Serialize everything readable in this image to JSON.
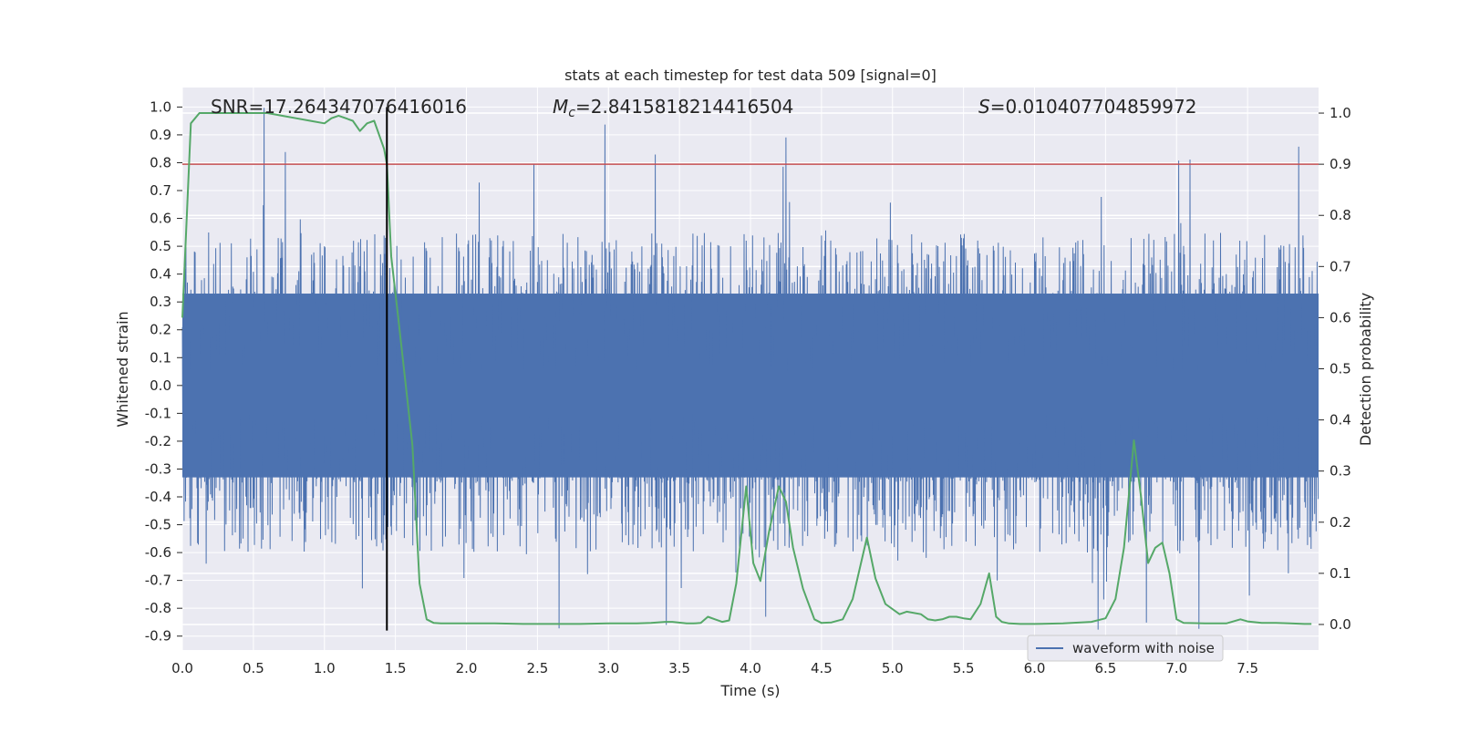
{
  "chart_data": {
    "type": "line",
    "title": "stats at each timestep for test data 509 [signal=0]",
    "xlabel": "Time (s)",
    "ylabel": "Whitened strain",
    "y2label": "Detection probability",
    "xlim": [
      0.0,
      8.0
    ],
    "ylim": [
      -0.95,
      1.07
    ],
    "y2lim": [
      -0.05,
      1.05
    ],
    "x_ticks": [
      "0.0",
      "0.5",
      "1.0",
      "1.5",
      "2.0",
      "2.5",
      "3.0",
      "3.5",
      "4.0",
      "4.5",
      "5.0",
      "5.5",
      "6.0",
      "6.5",
      "7.0",
      "7.5"
    ],
    "y_ticks": [
      "1.0",
      "0.9",
      "0.8",
      "0.7",
      "0.6",
      "0.5",
      "0.4",
      "0.3",
      "0.2",
      "0.1",
      "0.0",
      "-0.1",
      "-0.2",
      "-0.3",
      "-0.4",
      "-0.5",
      "-0.6",
      "-0.7",
      "-0.8",
      "-0.9"
    ],
    "y2_ticks": [
      "1.0",
      "0.9",
      "0.8",
      "0.7",
      "0.6",
      "0.5",
      "0.4",
      "0.3",
      "0.2",
      "0.1",
      "0.0"
    ],
    "annotations": {
      "snr": "SNR=17.264347076416016",
      "mc_symbol": "M",
      "mc_sub": "c",
      "mc_value": "=2.8415818214416504",
      "s_symbol": "S",
      "s_value": "=0.010407704859972"
    },
    "legend": {
      "label": "waveform with noise",
      "placement": "lower-right"
    },
    "threshold_line": {
      "value": 0.9,
      "axis": "right",
      "color": "#c44e52"
    },
    "event_marker": {
      "x": 1.44,
      "y_from": -0.88,
      "y_to": 1.0,
      "color": "#000000"
    },
    "strain_series": {
      "name": "waveform with noise",
      "color": "#4c72b0",
      "n_samples": 1600,
      "core_band": [
        -0.33,
        0.33
      ],
      "typical_peak": [
        0.28,
        0.55
      ],
      "max_peak": 1.0,
      "min_trough": -0.88
    },
    "detection_probability": {
      "color": "#55a868",
      "x": [
        0.0,
        0.06,
        0.12,
        0.2,
        0.3,
        0.4,
        0.5,
        0.6,
        0.7,
        0.8,
        0.9,
        1.0,
        1.05,
        1.1,
        1.2,
        1.25,
        1.3,
        1.35,
        1.42,
        1.44,
        1.47,
        1.52,
        1.58,
        1.62,
        1.67,
        1.72,
        1.77,
        1.82,
        1.9,
        2.0,
        2.2,
        2.4,
        2.6,
        2.8,
        3.0,
        3.2,
        3.3,
        3.4,
        3.45,
        3.55,
        3.6,
        3.65,
        3.7,
        3.75,
        3.8,
        3.85,
        3.9,
        3.97,
        4.02,
        4.07,
        4.13,
        4.2,
        4.25,
        4.3,
        4.37,
        4.45,
        4.5,
        4.57,
        4.65,
        4.72,
        4.82,
        4.88,
        4.95,
        5.05,
        5.1,
        5.2,
        5.25,
        5.3,
        5.35,
        5.4,
        5.45,
        5.5,
        5.55,
        5.62,
        5.68,
        5.73,
        5.77,
        5.82,
        5.9,
        6.0,
        6.2,
        6.4,
        6.5,
        6.57,
        6.63,
        6.7,
        6.75,
        6.8,
        6.85,
        6.9,
        6.95,
        7.0,
        7.05,
        7.2,
        7.35,
        7.45,
        7.5,
        7.6,
        7.7,
        7.8,
        7.9,
        7.95
      ],
      "y": [
        0.6,
        0.98,
        1.0,
        1.0,
        1.0,
        1.0,
        1.0,
        1.0,
        0.995,
        0.99,
        0.985,
        0.98,
        0.99,
        0.995,
        0.985,
        0.965,
        0.98,
        0.985,
        0.93,
        0.9,
        0.72,
        0.6,
        0.45,
        0.35,
        0.08,
        0.01,
        0.003,
        0.002,
        0.002,
        0.002,
        0.002,
        0.001,
        0.001,
        0.001,
        0.002,
        0.002,
        0.003,
        0.005,
        0.005,
        0.002,
        0.002,
        0.003,
        0.015,
        0.01,
        0.005,
        0.008,
        0.08,
        0.27,
        0.12,
        0.085,
        0.18,
        0.27,
        0.24,
        0.15,
        0.07,
        0.01,
        0.003,
        0.004,
        0.01,
        0.05,
        0.17,
        0.09,
        0.04,
        0.02,
        0.025,
        0.02,
        0.01,
        0.008,
        0.01,
        0.015,
        0.015,
        0.012,
        0.01,
        0.04,
        0.1,
        0.015,
        0.005,
        0.002,
        0.001,
        0.001,
        0.002,
        0.005,
        0.012,
        0.05,
        0.15,
        0.36,
        0.25,
        0.12,
        0.15,
        0.16,
        0.1,
        0.01,
        0.003,
        0.002,
        0.002,
        0.01,
        0.006,
        0.003,
        0.003,
        0.002,
        0.001,
        0.001
      ]
    },
    "grid": true,
    "colors": {
      "plot_bg": "#eaeaf2",
      "grid": "#ffffff",
      "text": "#262626"
    }
  }
}
